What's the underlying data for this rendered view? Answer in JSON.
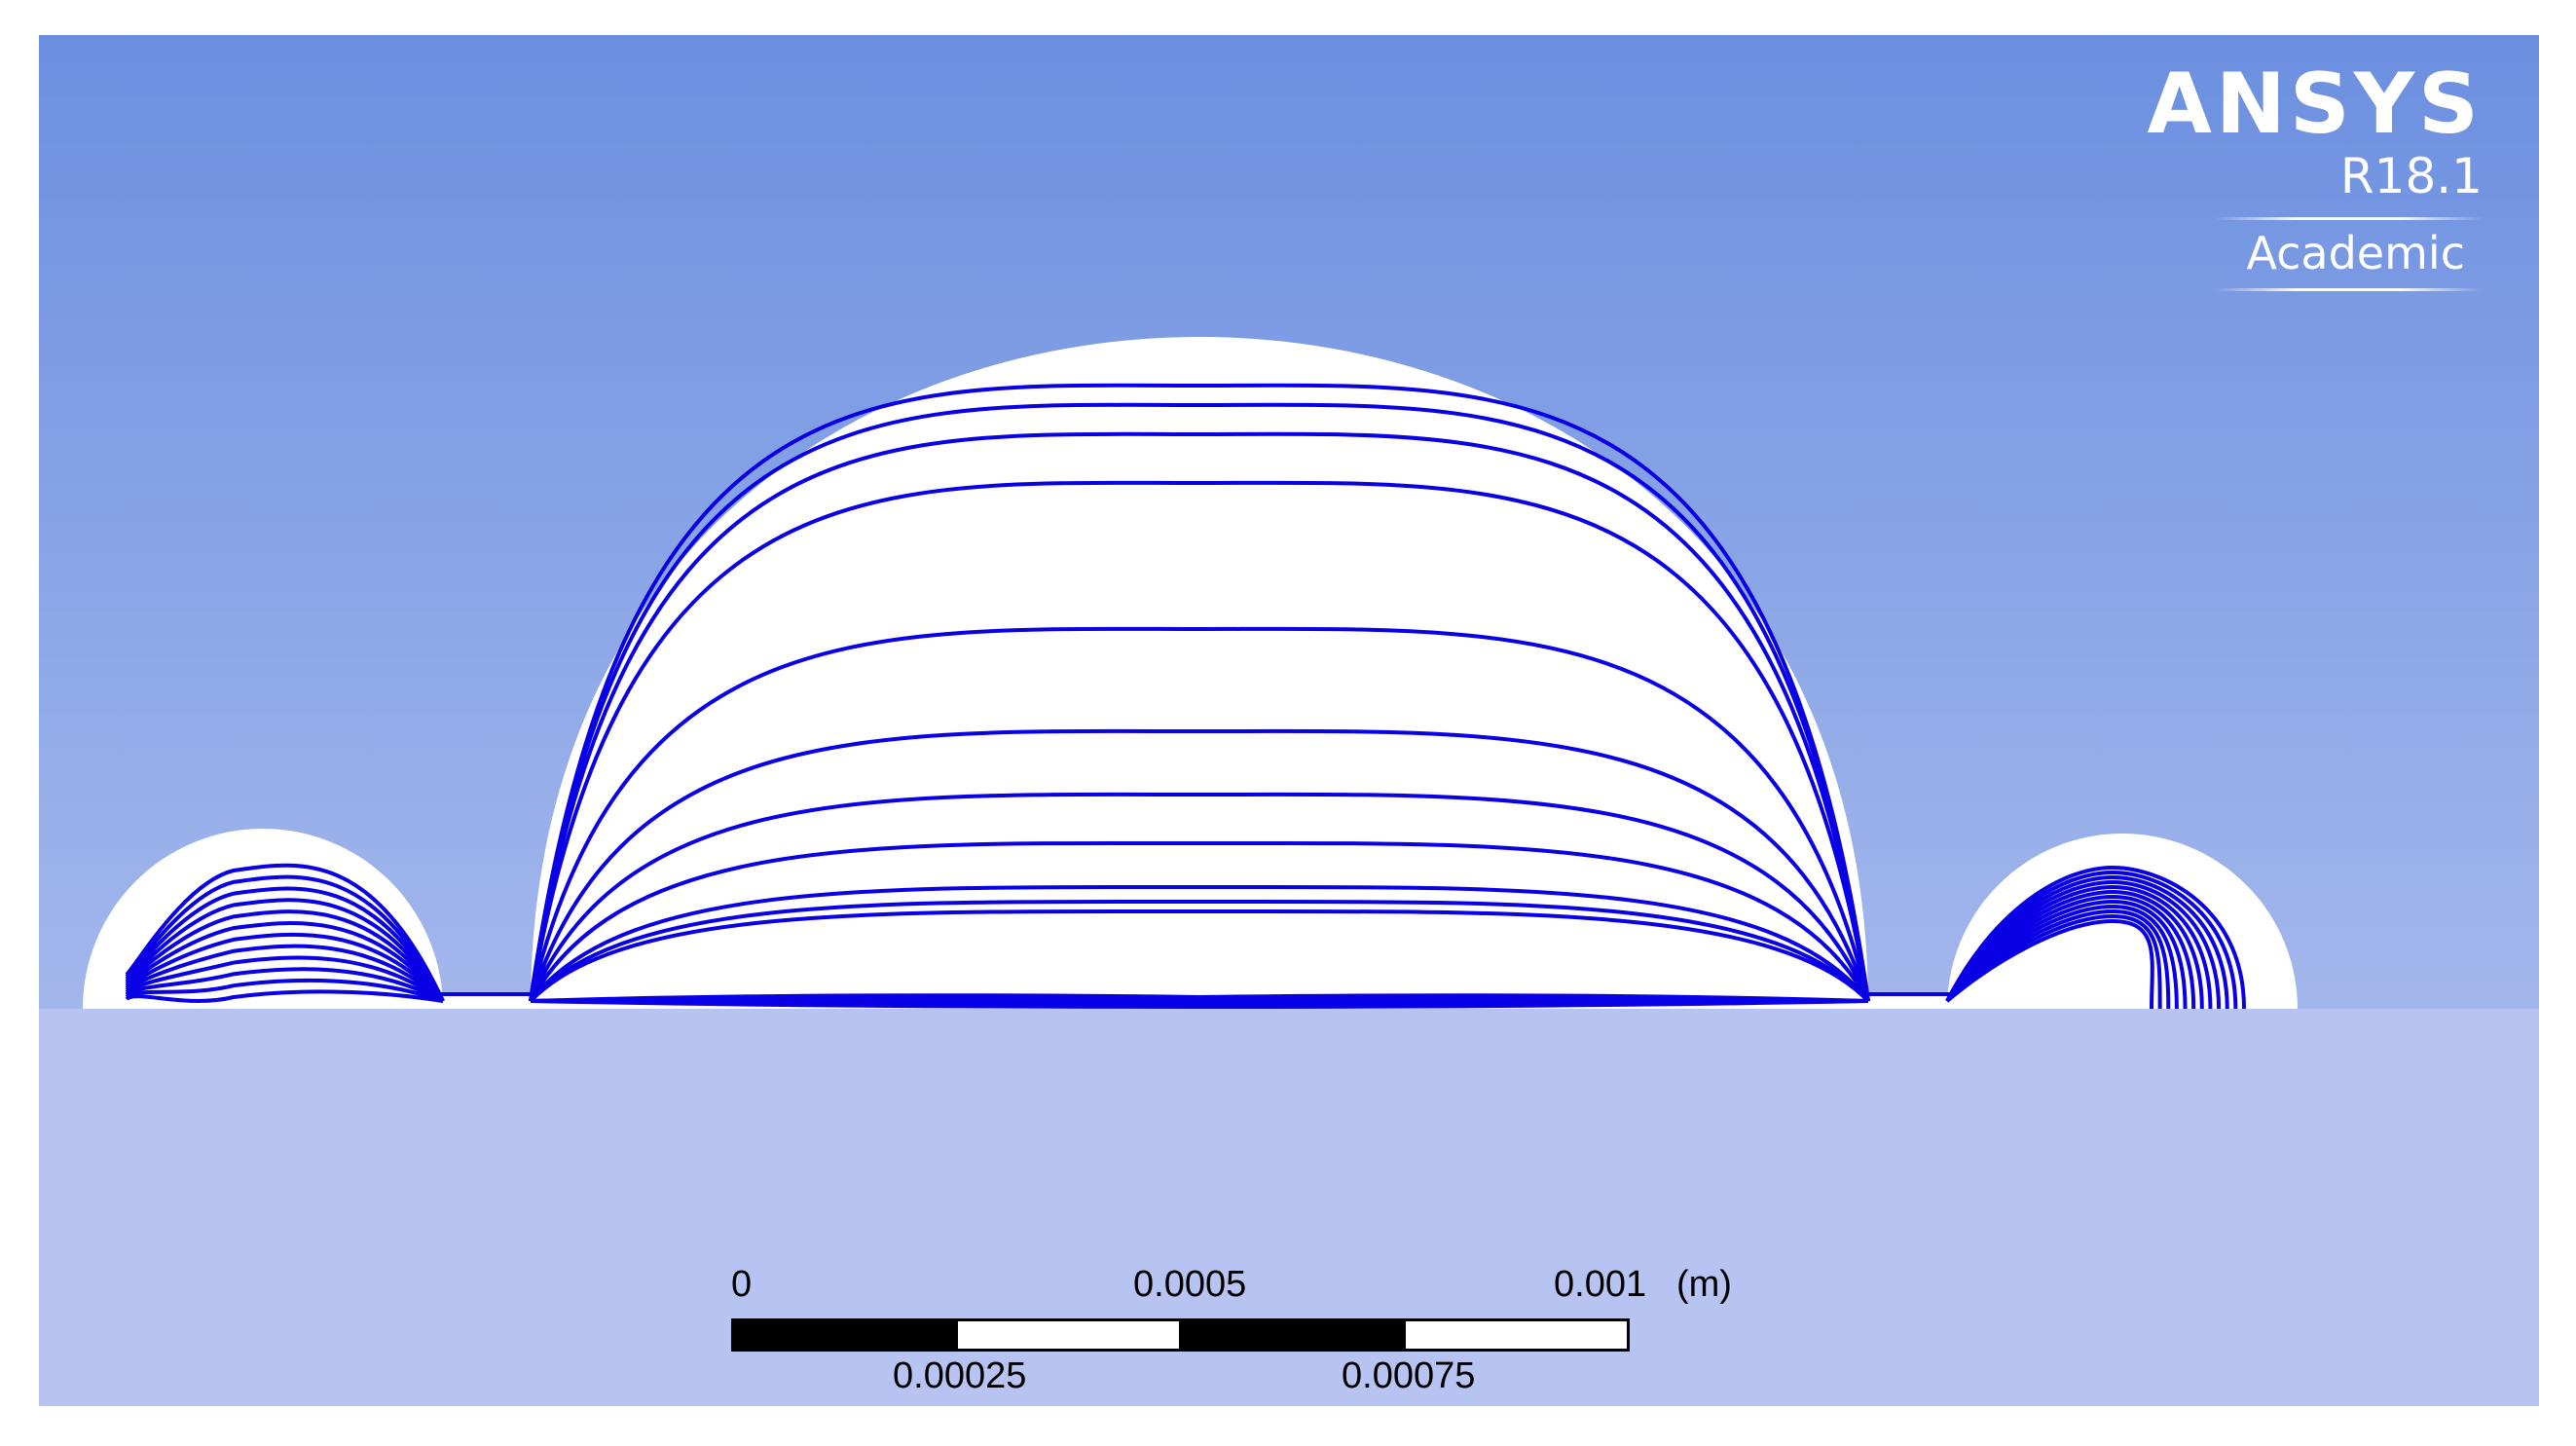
{
  "logo": {
    "brand": "ANSYS",
    "version": "R18.1",
    "edition": "Academic"
  },
  "scale_bar": {
    "top_labels": [
      "0",
      "0.0005",
      "0.001"
    ],
    "bottom_labels": [
      "0.00025",
      "0.00075"
    ],
    "unit": "(m)",
    "segments": [
      "black",
      "white",
      "black",
      "white"
    ]
  },
  "colors": {
    "background_top": "#6b8fe0",
    "background_bottom": "#b7c4f0",
    "domain_fill": "#ffffff",
    "streamline": "#0a00e6",
    "scale_black": "#000000"
  },
  "streamlines": {
    "center_count": 11,
    "left_count": 12,
    "right_count": 12
  }
}
